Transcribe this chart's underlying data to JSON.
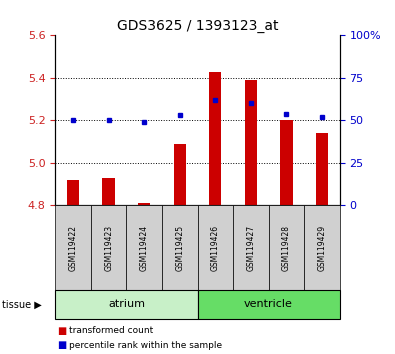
{
  "title": "GDS3625 / 1393123_at",
  "samples": [
    "GSM119422",
    "GSM119423",
    "GSM119424",
    "GSM119425",
    "GSM119426",
    "GSM119427",
    "GSM119428",
    "GSM119429"
  ],
  "transformed_count": [
    4.92,
    4.93,
    4.81,
    5.09,
    5.43,
    5.39,
    5.2,
    5.14
  ],
  "percentile_rank": [
    50,
    50,
    49,
    53,
    62,
    60,
    54,
    52
  ],
  "baseline": 4.8,
  "ylim_left": [
    4.8,
    5.6
  ],
  "ylim_right": [
    0,
    100
  ],
  "yticks_left": [
    4.8,
    5.0,
    5.2,
    5.4,
    5.6
  ],
  "yticks_right": [
    0,
    25,
    50,
    75,
    100
  ],
  "tissue_groups": [
    {
      "label": "atrium",
      "samples": [
        0,
        1,
        2,
        3
      ],
      "color": "#c8f0c8"
    },
    {
      "label": "ventricle",
      "samples": [
        4,
        5,
        6,
        7
      ],
      "color": "#66dd66"
    }
  ],
  "bar_color": "#cc0000",
  "dot_color": "#0000cc",
  "bg_color": "#ffffff",
  "plot_bg": "#ffffff",
  "left_label_color": "#cc2222",
  "right_label_color": "#0000cc",
  "bar_width": 0.35
}
